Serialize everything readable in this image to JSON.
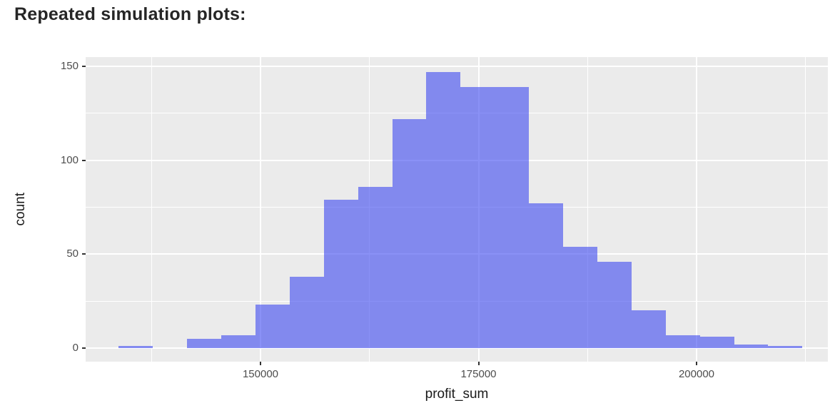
{
  "heading": "Repeated simulation plots:",
  "chart_data": {
    "type": "bar",
    "variant": "histogram",
    "title": "Repeated simulation plots:",
    "xlabel": "profit_sum",
    "ylabel": "count",
    "legend": "none",
    "grid": "white major and minor gridlines on gray panel",
    "xlim": [
      129950,
      215050
    ],
    "ylim": [
      -7,
      155
    ],
    "x_ticks": [
      {
        "value": 150000,
        "label": "150000"
      },
      {
        "value": 175000,
        "label": "175000"
      },
      {
        "value": 200000,
        "label": "200000"
      }
    ],
    "y_ticks": [
      {
        "value": 0,
        "label": "0"
      },
      {
        "value": 50,
        "label": "50"
      },
      {
        "value": 100,
        "label": "100"
      },
      {
        "value": 150,
        "label": "150"
      }
    ],
    "x_minor_gridlines": [
      137500,
      162500,
      187500,
      212500
    ],
    "y_minor_gridlines": [
      25,
      75,
      125
    ],
    "bin_width": 3920,
    "bins": [
      {
        "start": 133740,
        "count": 1
      },
      {
        "start": 137660,
        "count": 0
      },
      {
        "start": 141580,
        "count": 5
      },
      {
        "start": 145500,
        "count": 7
      },
      {
        "start": 149420,
        "count": 23
      },
      {
        "start": 153340,
        "count": 38
      },
      {
        "start": 157260,
        "count": 79
      },
      {
        "start": 161180,
        "count": 86
      },
      {
        "start": 165100,
        "count": 122
      },
      {
        "start": 169020,
        "count": 147
      },
      {
        "start": 172940,
        "count": 139
      },
      {
        "start": 176860,
        "count": 139
      },
      {
        "start": 180780,
        "count": 77
      },
      {
        "start": 184700,
        "count": 54
      },
      {
        "start": 188620,
        "count": 46
      },
      {
        "start": 192540,
        "count": 20
      },
      {
        "start": 196460,
        "count": 7
      },
      {
        "start": 200380,
        "count": 6
      },
      {
        "start": 204300,
        "count": 2
      },
      {
        "start": 208220,
        "count": 1
      }
    ],
    "colors": {
      "bar_fill": "rgba(66,77,240,0.62)",
      "bar_fill_apparent": "#8289ec",
      "panel_background": "#ebebeb",
      "gridline": "#ffffff",
      "tick_label": "#4d4d4d",
      "axis_title": "#1a1a1a",
      "heading_text": "#262626",
      "tick_mark": "#333333"
    }
  }
}
